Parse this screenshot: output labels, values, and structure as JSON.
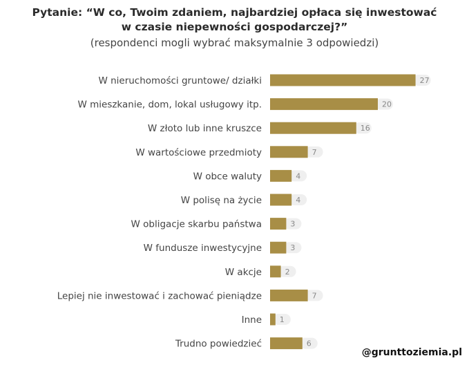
{
  "question": {
    "line1": "Pytanie: “W co, Twoim zdaniem, najbardziej opłaca się inwestować",
    "line2": "w czasie niepewności gospodarczej?”",
    "note": "(respondenci mogli wybrać maksymalnie 3 odpowiedzi)"
  },
  "watermark": "@grunttoziemia.pl",
  "colors": {
    "bar": "#a88e46",
    "value_pill": "#efefef"
  },
  "chart_data": {
    "type": "bar",
    "orientation": "horizontal",
    "categories": [
      "W nieruchomości gruntowe/ działki",
      "W mieszkanie, dom, lokal usługowy itp.",
      "W złoto lub inne kruszce",
      "W wartościowe przedmioty",
      "W obce waluty",
      "W polisę na życie",
      "W obligacje skarbu państwa",
      "W fundusze inwestycyjne",
      "W akcje",
      "Lepiej nie inwestować i zachować pieniądze",
      "Inne",
      "Trudno powiedzieć"
    ],
    "values": [
      27,
      20,
      16,
      7,
      4,
      4,
      3,
      3,
      2,
      7,
      1,
      6
    ],
    "xlim": [
      0,
      27
    ],
    "grid": false,
    "legend": "none"
  }
}
